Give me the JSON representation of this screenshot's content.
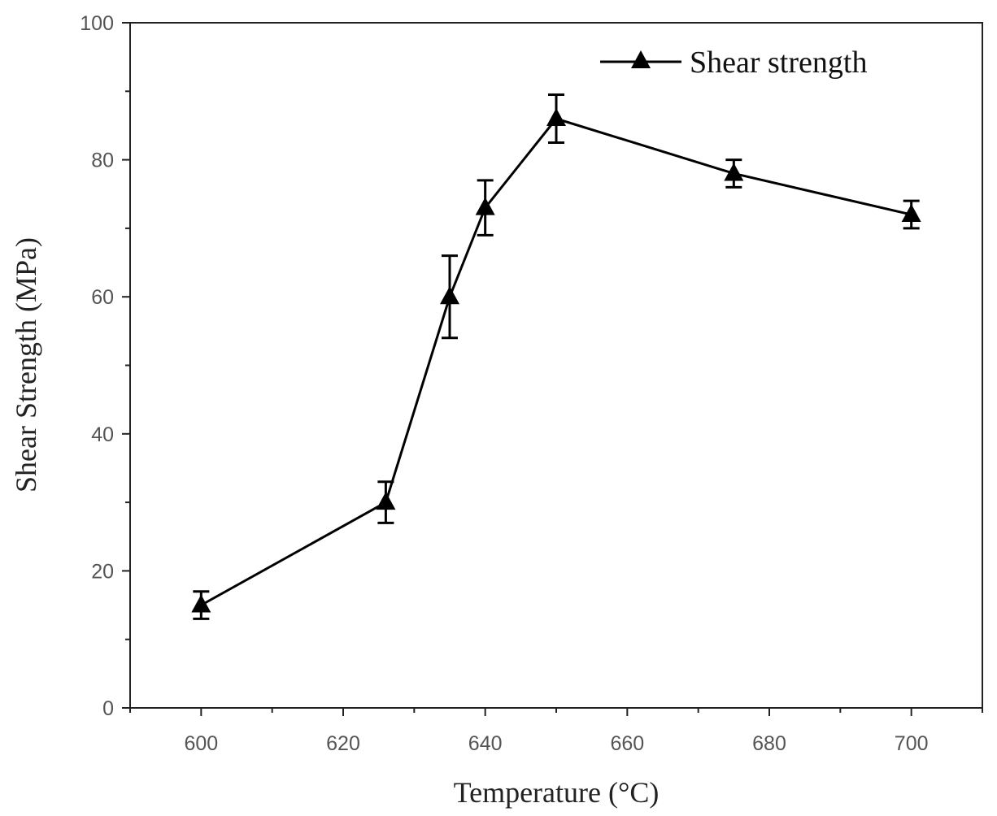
{
  "chart_data": {
    "type": "line",
    "title": "",
    "xlabel": "Temperature (°C)",
    "ylabel": "Shear Strength (MPa)",
    "xlim": [
      590,
      710
    ],
    "ylim": [
      0,
      100
    ],
    "x_ticks": [
      600,
      620,
      640,
      660,
      680,
      700
    ],
    "y_ticks": [
      0,
      20,
      40,
      60,
      80,
      100
    ],
    "x_tick_labels": [
      "600",
      "620",
      "640",
      "660",
      "680",
      "700"
    ],
    "y_tick_labels": [
      "0",
      "20",
      "40",
      "60",
      "80",
      "100"
    ],
    "grid": false,
    "legend_position": "top-right",
    "series": [
      {
        "name": "Shear strength",
        "marker": "triangle",
        "color": "#000000",
        "x": [
          600,
          626,
          635,
          640,
          650,
          675,
          700
        ],
        "y": [
          15,
          30,
          60,
          73,
          86,
          78,
          72
        ],
        "error": [
          2,
          3,
          6,
          4,
          3.5,
          2,
          2
        ]
      }
    ]
  }
}
